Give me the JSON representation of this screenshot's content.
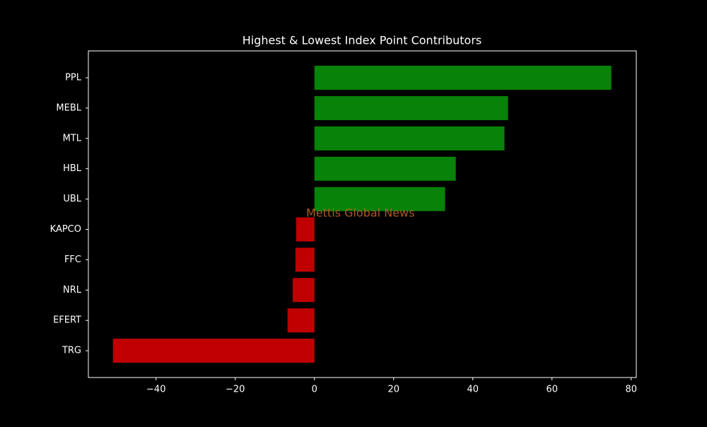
{
  "chart_data": {
    "type": "barh",
    "title": "Highest & Lowest Index Point Contributors",
    "categories": [
      "PPL",
      "MEBL",
      "MTL",
      "HBL",
      "UBL",
      "KAPCO",
      "FFC",
      "NRL",
      "EFERT",
      "TRG"
    ],
    "values": [
      75.0,
      48.9,
      48.0,
      35.7,
      33.0,
      -4.6,
      -4.8,
      -5.5,
      -6.8,
      -50.9
    ],
    "colors": [
      "#088208",
      "#088208",
      "#088208",
      "#088208",
      "#088208",
      "#c00000",
      "#c00000",
      "#c00000",
      "#c00000",
      "#c00000"
    ],
    "xlim": [
      -57.1,
      81.3
    ],
    "xticks": [
      {
        "value": -40,
        "label": "−40"
      },
      {
        "value": -20,
        "label": "−20"
      },
      0,
      20,
      40,
      60,
      80
    ],
    "annotation": "Mettis Global News"
  }
}
